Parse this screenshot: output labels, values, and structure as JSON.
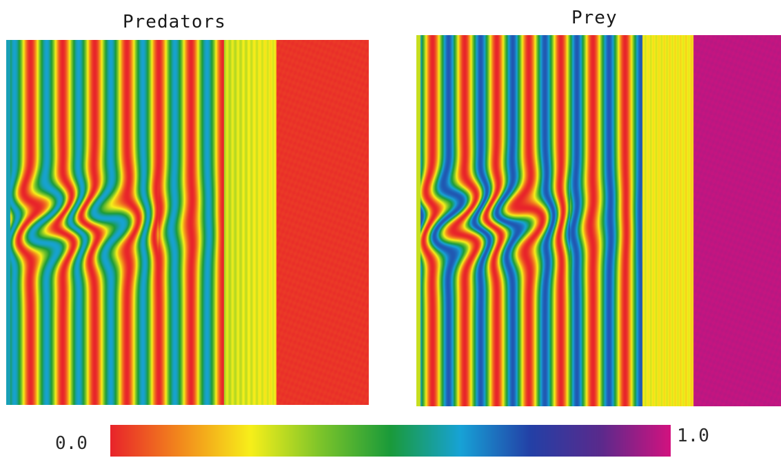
{
  "panels": [
    {
      "id": "predators",
      "title": "Predators",
      "uniform_region_value": 0.02,
      "left_edge_value": 0.6
    },
    {
      "id": "prey",
      "title": "Prey",
      "uniform_region_value": 0.98,
      "left_edge_value": 0.3
    }
  ],
  "colorbar": {
    "min_label": "0.0",
    "max_label": "1.0",
    "stops": [
      "#e8242a",
      "#f28a1c",
      "#f7ef1a",
      "#7cc42a",
      "#1a9a3a",
      "#17a2d6",
      "#2340a6",
      "#5a2a8c",
      "#d2127f"
    ]
  }
}
